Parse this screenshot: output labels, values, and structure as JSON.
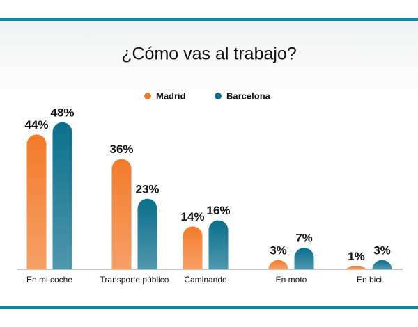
{
  "chart_data": {
    "type": "bar",
    "title": "¿Cómo vas al trabajo?",
    "categories": [
      "En mi coche",
      "Transporte público",
      "Caminando",
      "En moto",
      "En bici"
    ],
    "series": [
      {
        "name": "Madrid",
        "color": "#f37b2a",
        "values": [
          44,
          36,
          14,
          3,
          1
        ],
        "value_labels": [
          "44%",
          "36%",
          "14%",
          "3%",
          "1%"
        ]
      },
      {
        "name": "Barcelona",
        "color": "#0b6f8c",
        "values": [
          48,
          23,
          16,
          7,
          3
        ],
        "value_labels": [
          "48%",
          "23%",
          "16%",
          "7%",
          "3%"
        ]
      }
    ]
  }
}
